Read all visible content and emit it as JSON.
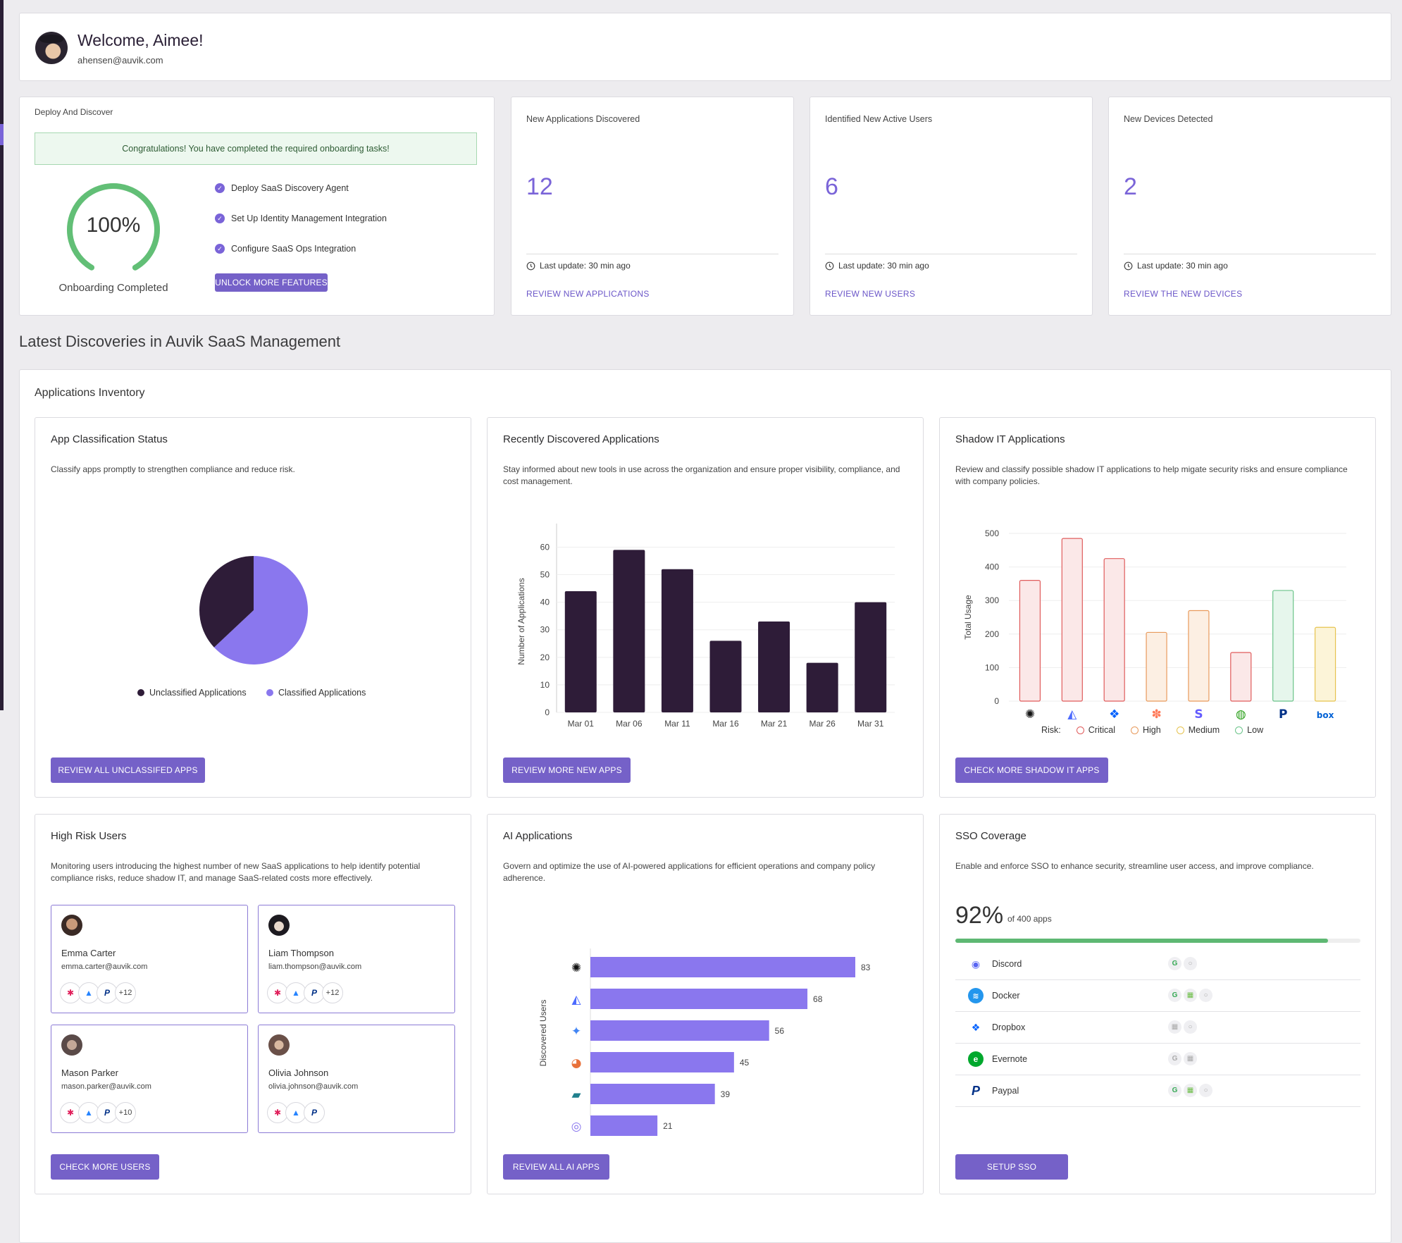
{
  "header": {
    "greeting": "Welcome, Aimee!",
    "email": "ahensen@auvik.com"
  },
  "deploy": {
    "title": "Deploy And Discover",
    "congrats": "Congratulations! You have completed the required onboarding tasks!",
    "progress_value": "100%",
    "progress_fraction": 1.0,
    "progress_label": "Onboarding Completed",
    "tasks": [
      "Deploy SaaS Discovery Agent",
      "Set Up Identity Management Integration",
      "Configure SaaS Ops Integration"
    ],
    "button": "UNLOCK MORE FEATURES"
  },
  "stats": [
    {
      "title": "New Applications Discovered",
      "value": "12",
      "updated": "Last update: 30 min ago",
      "link": "REVIEW NEW APPLICATIONS"
    },
    {
      "title": "Identified New Active Users",
      "value": "6",
      "updated": "Last update: 30 min ago",
      "link": "REVIEW NEW USERS"
    },
    {
      "title": "New Devices Detected",
      "value": "2",
      "updated": "Last update: 30 min ago",
      "link": "REVIEW THE NEW DEVICES"
    }
  ],
  "section_title": "Latest Discoveries in Auvik SaaS Management",
  "inventory_title": "Applications Inventory",
  "classification": {
    "title": "App Classification Status",
    "desc": "Classify apps promptly to strengthen compliance and reduce risk.",
    "legend": [
      "Unclassified Applications",
      "Classified Applications"
    ],
    "button": "REVIEW ALL UNCLASSIFED APPS"
  },
  "recent": {
    "title": "Recently Discovered Applications",
    "desc": "Stay informed about new tools in use across the organization and ensure proper visibility, compliance, and cost management.",
    "button": "REVIEW MORE NEW APPS"
  },
  "shadow": {
    "title": "Shadow IT Applications",
    "desc": "Review and classify possible shadow IT applications to help migate security risks and ensure compliance with company policies.",
    "risk_label": "Risk:",
    "risk_levels": [
      "Critical",
      "High",
      "Medium",
      "Low"
    ],
    "button": "CHECK MORE SHADOW IT APPS"
  },
  "risk_users": {
    "title": "High Risk Users",
    "desc": "Monitoring users introducing the highest number of new SaaS applications to help identify potential compliance risks, reduce shadow IT, and manage SaaS-related costs more effectively.",
    "users": [
      {
        "name": "Emma Carter",
        "email": "emma.carter@auvik.com",
        "more": "+12"
      },
      {
        "name": "Liam Thompson",
        "email": "liam.thompson@auvik.com",
        "more": "+12"
      },
      {
        "name": "Mason Parker",
        "email": "mason.parker@auvik.com",
        "more": "+10"
      },
      {
        "name": "Olivia Johnson",
        "email": "olivia.johnson@auvik.com",
        "more": ""
      }
    ],
    "button": "CHECK MORE USERS"
  },
  "ai": {
    "title": "AI Applications",
    "desc": "Govern and optimize the use of AI-powered applications for efficient operations and company policy adherence.",
    "button": "REVIEW ALL AI APPS"
  },
  "sso": {
    "title": "SSO Coverage",
    "desc": "Enable and enforce SSO to enhance security, streamline user access, and improve compliance.",
    "percent": "92%",
    "percent_fraction": 0.92,
    "of_apps": "of 400 apps",
    "apps": [
      "Discord",
      "Docker",
      "Dropbox",
      "Evernote",
      "Paypal"
    ],
    "button": "SETUP SSO"
  },
  "chart_data": [
    {
      "type": "pie",
      "title": "App Classification Status",
      "categories": [
        "Unclassified Applications",
        "Classified Applications"
      ],
      "values": [
        37,
        63
      ],
      "colors": [
        "#2e1c38",
        "#8a77ee"
      ]
    },
    {
      "type": "bar",
      "title": "Recently Discovered Applications",
      "categories": [
        "Mar 01",
        "Mar 06",
        "Mar 11",
        "Mar 16",
        "Mar 21",
        "Mar 26",
        "Mar 31"
      ],
      "values": [
        44,
        59,
        52,
        26,
        33,
        18,
        40
      ],
      "ylabel": "Number of Applications",
      "yticks": [
        0,
        10,
        20,
        30,
        40,
        50,
        60
      ],
      "ylim": [
        0,
        66
      ],
      "color": "#2e1c38"
    },
    {
      "type": "bar",
      "title": "Shadow IT Applications",
      "categories": [
        "ChatGPT",
        "DeepSeek",
        "Dropbox",
        "HubSpot",
        "Stripe",
        "QuickBooks",
        "PayPal",
        "Box"
      ],
      "values": [
        360,
        485,
        425,
        205,
        270,
        145,
        330,
        220
      ],
      "risk": [
        "Critical",
        "Critical",
        "Critical",
        "High",
        "High",
        "Critical",
        "Low",
        "Medium"
      ],
      "ylabel": "Total Usage",
      "yticks": [
        0,
        100,
        200,
        300,
        400,
        500
      ],
      "ylim": [
        0,
        520
      ]
    },
    {
      "type": "bar",
      "orientation": "horizontal",
      "title": "AI Applications",
      "categories": [
        "ChatGPT",
        "DeepSeek",
        "Gemini",
        "Copilot",
        "Perplexity",
        "Claude"
      ],
      "values": [
        83,
        68,
        56,
        45,
        39,
        21
      ],
      "ylabel": "Discovered Users",
      "color": "#8a77ee"
    }
  ]
}
